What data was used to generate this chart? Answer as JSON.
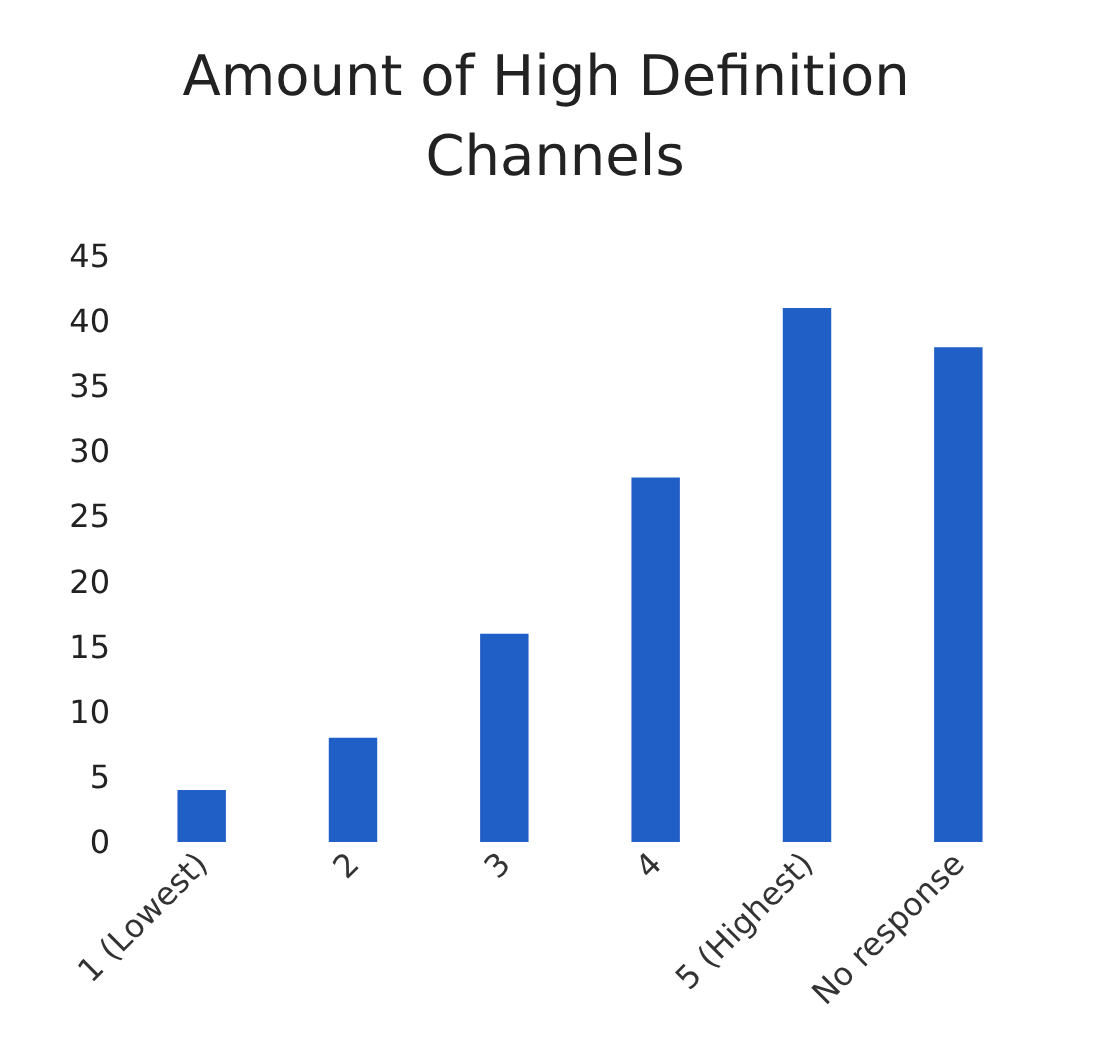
{
  "chart_data": {
    "type": "bar",
    "title": "Amount of High Definition Channels",
    "categories": [
      "1 (Lowest)",
      "2",
      "3",
      "4",
      "5 (Highest)",
      "No response"
    ],
    "values": [
      4,
      8,
      16,
      28,
      41,
      38
    ],
    "color": "#1f5fc6",
    "ylim": [
      0,
      45
    ],
    "yticks": [
      0,
      5,
      10,
      15,
      20,
      25,
      30,
      35,
      40,
      45
    ],
    "grid": false
  }
}
